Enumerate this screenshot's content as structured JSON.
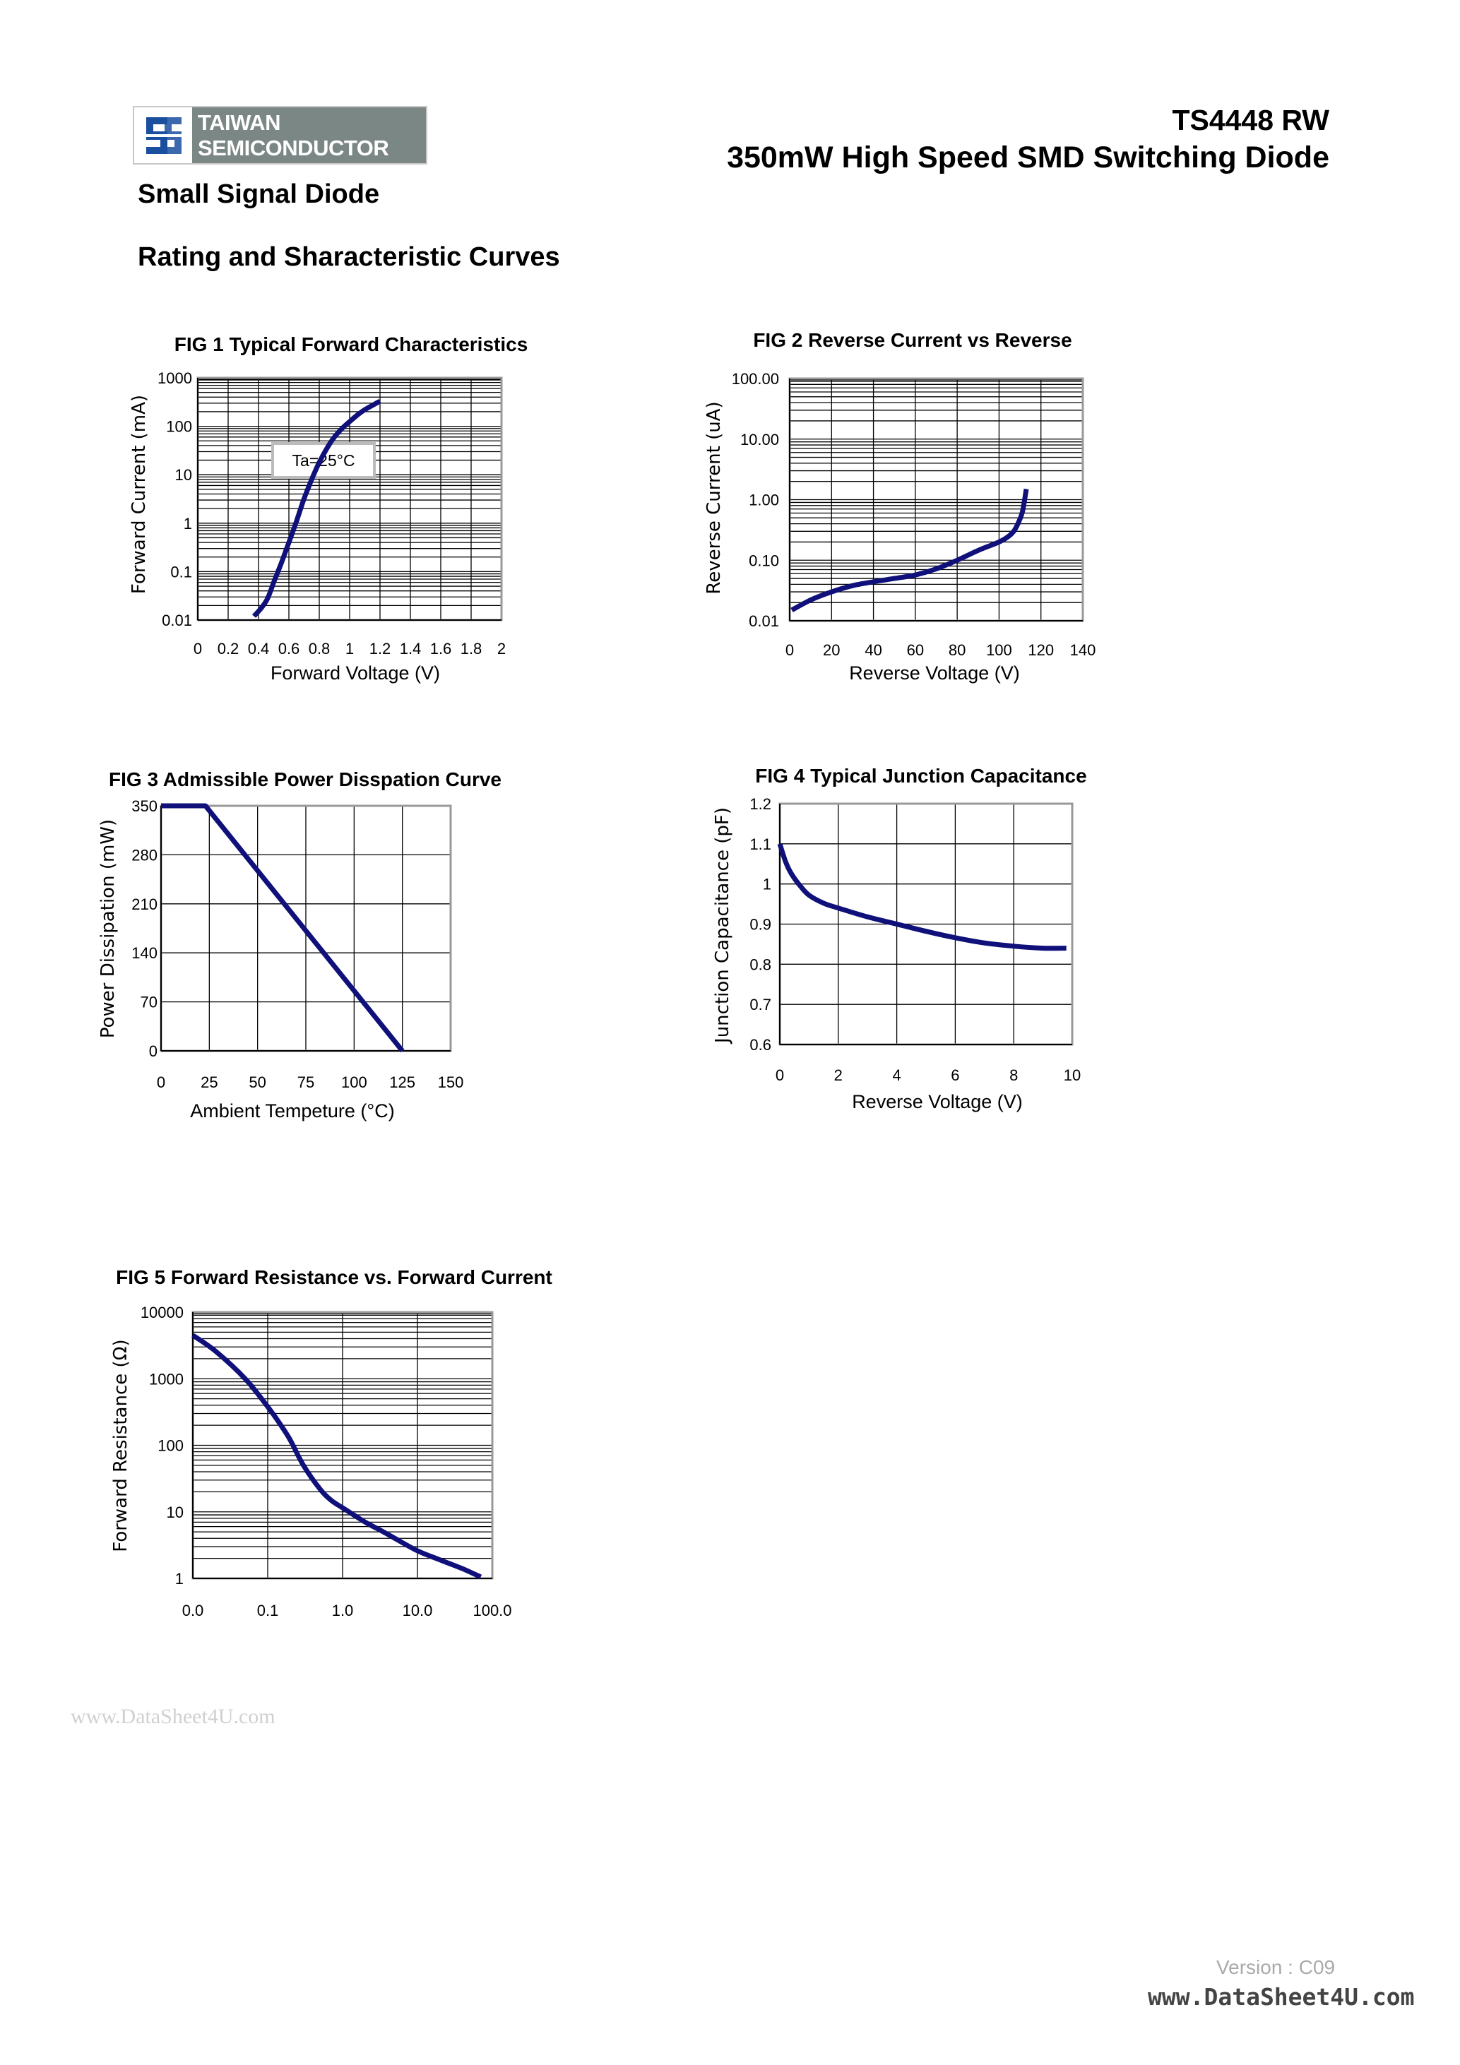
{
  "header": {
    "logo_line1": "TAIWAN",
    "logo_line2": "SEMICONDUCTOR",
    "part_number": "TS4448 RW",
    "subtitle": "350mW High Speed SMD Switching Diode",
    "category": "Small Signal Diode",
    "section_title": "Rating and Sharacteristic Curves"
  },
  "colors": {
    "curve": "#10107a",
    "frame": "#999999",
    "grid": "#000000",
    "logo_blue": "#1a4fa0",
    "logo_gray": "#7b8784"
  },
  "chart_data": [
    {
      "id": "fig1",
      "type": "line",
      "title": "FIG 1 Typical Forward Characteristics",
      "xlabel": "Forward Voltage (V)",
      "ylabel": "Forward Current (mA)",
      "xscale": "linear",
      "yscale": "log",
      "xlim": [
        0,
        2
      ],
      "ylim": [
        0.01,
        1000
      ],
      "xticks": [
        "0",
        "0.2",
        "0.4",
        "0.6",
        "0.8",
        "1",
        "1.2",
        "1.4",
        "1.6",
        "1.8",
        "2"
      ],
      "yticks": [
        "0.01",
        "0.1",
        "1",
        "10",
        "100",
        "1000"
      ],
      "annotation": "Ta=25°C",
      "grid": true,
      "x": [
        0.37,
        0.42,
        0.46,
        0.5,
        0.55,
        0.6,
        0.65,
        0.7,
        0.75,
        0.8,
        0.85,
        0.9,
        0.95,
        1.0,
        1.05,
        1.1,
        1.15,
        1.2
      ],
      "y": [
        0.012,
        0.018,
        0.028,
        0.06,
        0.15,
        0.4,
        1.1,
        3.2,
        8,
        18,
        35,
        60,
        90,
        125,
        170,
        220,
        270,
        330
      ]
    },
    {
      "id": "fig2",
      "type": "line",
      "title": "FIG 2 Reverse Current vs Reverse",
      "xlabel": "Reverse Voltage (V)",
      "ylabel": "Reverse Current (uA)",
      "xscale": "linear",
      "yscale": "log",
      "xlim": [
        0,
        140
      ],
      "ylim": [
        0.01,
        100
      ],
      "xticks": [
        "0",
        "20",
        "40",
        "60",
        "80",
        "100",
        "120",
        "140"
      ],
      "yticks": [
        "0.01",
        "0.10",
        "1.00",
        "10.00",
        "100.00"
      ],
      "grid": true,
      "x": [
        1,
        10,
        20,
        30,
        40,
        50,
        60,
        70,
        80,
        90,
        100,
        104,
        107,
        109,
        111,
        112,
        113
      ],
      "y": [
        0.015,
        0.022,
        0.03,
        0.038,
        0.044,
        0.05,
        0.057,
        0.072,
        0.1,
        0.145,
        0.2,
        0.24,
        0.3,
        0.4,
        0.6,
        0.9,
        1.5
      ]
    },
    {
      "id": "fig3",
      "type": "line",
      "title": "FIG 3 Admissible Power Disspation Curve",
      "xlabel": "Ambient Tempeture (°C)",
      "ylabel": "Power Dissipation (mW)",
      "xscale": "linear",
      "yscale": "linear",
      "xlim": [
        0,
        150
      ],
      "ylim": [
        0,
        350
      ],
      "xticks": [
        "0",
        "25",
        "50",
        "75",
        "100",
        "125",
        "150"
      ],
      "yticks": [
        "0",
        "70",
        "140",
        "210",
        "280",
        "350"
      ],
      "grid": true,
      "x": [
        0,
        23,
        125
      ],
      "y": [
        350,
        350,
        0
      ]
    },
    {
      "id": "fig4",
      "type": "line",
      "title": "FIG 4 Typical Junction Capacitance",
      "xlabel": "Reverse Voltage (V)",
      "ylabel": "Junction Capacitance (pF)",
      "xscale": "linear",
      "yscale": "linear",
      "xlim": [
        0,
        10
      ],
      "ylim": [
        0.6,
        1.2
      ],
      "xticks": [
        "0",
        "2",
        "4",
        "6",
        "8",
        "10"
      ],
      "yticks": [
        "0.6",
        "0.7",
        "0.8",
        "0.9",
        "1",
        "1.1",
        "1.2"
      ],
      "grid": true,
      "x": [
        0,
        0.2,
        0.4,
        0.7,
        1,
        1.5,
        2,
        3,
        4,
        5,
        6,
        7,
        8,
        9,
        9.8
      ],
      "y": [
        1.1,
        1.055,
        1.025,
        0.995,
        0.972,
        0.952,
        0.94,
        0.918,
        0.9,
        0.882,
        0.866,
        0.853,
        0.845,
        0.84,
        0.84
      ]
    },
    {
      "id": "fig5",
      "type": "line",
      "title": "FIG 5 Forward Resistance vs. Forward Current",
      "xlabel": "",
      "ylabel": "Forward Resistance (Ω)",
      "xscale": "log",
      "yscale": "log",
      "xlim": [
        0.01,
        100
      ],
      "ylim": [
        1,
        10000
      ],
      "xticks": [
        "0.0",
        "0.1",
        "1.0",
        "10.0",
        "100.0"
      ],
      "yticks": [
        "1",
        "10",
        "100",
        "1000",
        "10000"
      ],
      "grid": true,
      "x": [
        0.01,
        0.02,
        0.05,
        0.1,
        0.15,
        0.2,
        0.3,
        0.5,
        0.7,
        1,
        2,
        3,
        5,
        10,
        20,
        40,
        70
      ],
      "y": [
        4500,
        2600,
        1000,
        380,
        200,
        120,
        50,
        22,
        15,
        11.5,
        7,
        5.5,
        4,
        2.6,
        1.9,
        1.4,
        1.05
      ]
    }
  ],
  "footer": {
    "watermark": "www.DataSheet4U.com",
    "version": "Version : C09",
    "site": "www.DataSheet4U.com"
  }
}
